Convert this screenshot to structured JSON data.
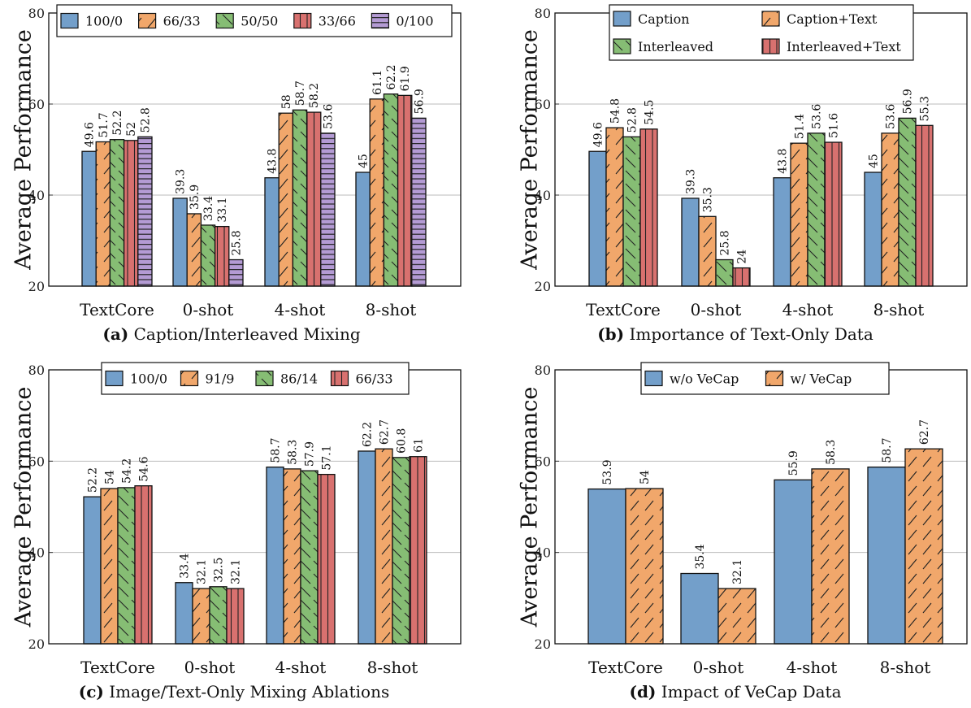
{
  "colors": {
    "blue": "#739fca",
    "orange": "#f1a76b",
    "green": "#86bd74",
    "red": "#d8716f",
    "purple": "#b49bd4"
  },
  "chart_data": [
    {
      "type": "bar",
      "caption_label": "(a)",
      "caption": "Caption/Interleaved Mixing",
      "ylabel": "Average Performance",
      "ylim": [
        20,
        80
      ],
      "yticks": [
        20,
        40,
        60,
        80
      ],
      "grid": true,
      "legend": "top",
      "categories": [
        "TextCore",
        "0-shot",
        "4-shot",
        "8-shot"
      ],
      "series": [
        {
          "name": "100/0",
          "color": "blue",
          "pattern": "none",
          "values": [
            49.6,
            39.3,
            43.8,
            45
          ]
        },
        {
          "name": "66/33",
          "color": "orange",
          "pattern": "north-east-lines",
          "values": [
            51.7,
            35.9,
            58,
            61.1
          ]
        },
        {
          "name": "50/50",
          "color": "green",
          "pattern": "north-west-lines",
          "values": [
            52.2,
            33.4,
            58.7,
            62.2
          ]
        },
        {
          "name": "33/66",
          "color": "red",
          "pattern": "vertical-lines",
          "values": [
            52,
            33.1,
            58.2,
            61.9
          ]
        },
        {
          "name": "0/100",
          "color": "purple",
          "pattern": "horizontal-lines",
          "values": [
            52.8,
            25.8,
            53.6,
            56.9
          ]
        }
      ]
    },
    {
      "type": "bar",
      "caption_label": "(b)",
      "caption": "Importance of Text-Only Data",
      "ylabel": "Average Performance",
      "ylim": [
        20,
        80
      ],
      "yticks": [
        20,
        40,
        60,
        80
      ],
      "grid": true,
      "legend": "top",
      "categories": [
        "TextCore",
        "0-shot",
        "4-shot",
        "8-shot"
      ],
      "series": [
        {
          "name": "Caption",
          "color": "blue",
          "pattern": "none",
          "values": [
            49.6,
            39.3,
            43.8,
            45
          ]
        },
        {
          "name": "Caption+Text",
          "color": "orange",
          "pattern": "north-east-lines",
          "values": [
            54.8,
            35.3,
            51.4,
            53.6
          ]
        },
        {
          "name": "Interleaved",
          "color": "green",
          "pattern": "north-west-lines",
          "values": [
            52.8,
            25.8,
            53.6,
            56.9
          ]
        },
        {
          "name": "Interleaved+Text",
          "color": "red",
          "pattern": "vertical-lines",
          "values": [
            54.5,
            24,
            51.6,
            55.3
          ]
        }
      ]
    },
    {
      "type": "bar",
      "caption_label": "(c)",
      "caption": "Image/Text-Only Mixing Ablations",
      "ylabel": "Average Performance",
      "ylim": [
        20,
        80
      ],
      "yticks": [
        20,
        40,
        60,
        80
      ],
      "grid": true,
      "legend": "top",
      "categories": [
        "TextCore",
        "0-shot",
        "4-shot",
        "8-shot"
      ],
      "series": [
        {
          "name": "100/0",
          "color": "blue",
          "pattern": "none",
          "values": [
            52.2,
            33.4,
            58.7,
            62.2
          ]
        },
        {
          "name": "91/9",
          "color": "orange",
          "pattern": "north-east-lines",
          "values": [
            54,
            32.1,
            58.3,
            62.7
          ]
        },
        {
          "name": "86/14",
          "color": "green",
          "pattern": "north-west-lines",
          "values": [
            54.2,
            32.5,
            57.9,
            60.8
          ]
        },
        {
          "name": "66/33",
          "color": "red",
          "pattern": "vertical-lines",
          "values": [
            54.6,
            32.1,
            57.1,
            61
          ]
        }
      ]
    },
    {
      "type": "bar",
      "caption_label": "(d)",
      "caption": "Impact of VeCap Data",
      "ylabel": "Average Performance",
      "ylim": [
        20,
        80
      ],
      "yticks": [
        20,
        40,
        60,
        80
      ],
      "grid": true,
      "legend": "top",
      "categories": [
        "TextCore",
        "0-shot",
        "4-shot",
        "8-shot"
      ],
      "series": [
        {
          "name": "w/o VeCap",
          "color": "blue",
          "pattern": "none",
          "values": [
            53.9,
            35.4,
            55.9,
            58.7
          ]
        },
        {
          "name": "w/ VeCap",
          "color": "orange",
          "pattern": "north-east-lines",
          "values": [
            54,
            32.1,
            58.3,
            62.7
          ]
        }
      ]
    }
  ]
}
